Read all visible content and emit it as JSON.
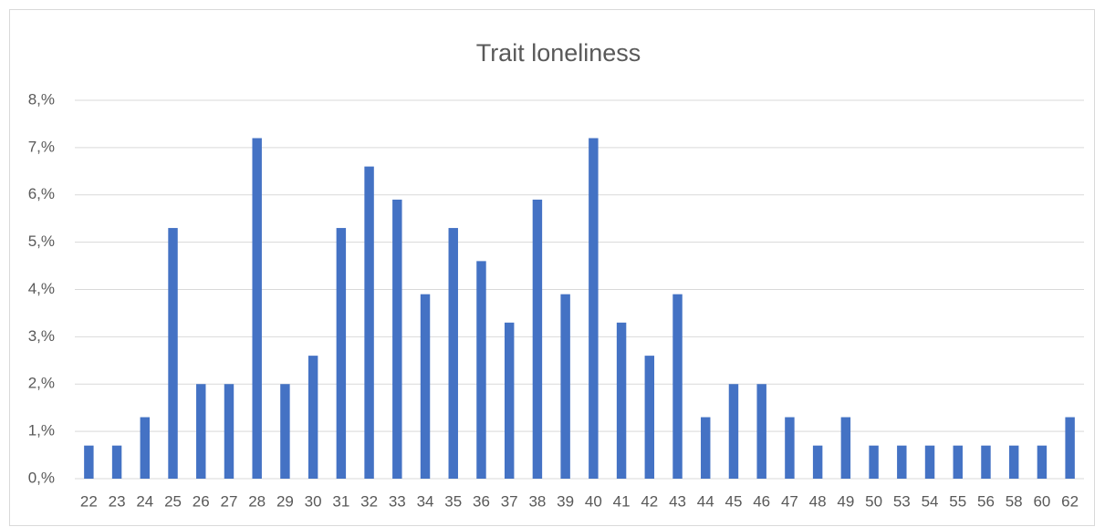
{
  "chart_data": {
    "type": "bar",
    "title": "Trait loneliness",
    "categories": [
      "22",
      "23",
      "24",
      "25",
      "26",
      "27",
      "28",
      "29",
      "30",
      "31",
      "32",
      "33",
      "34",
      "35",
      "36",
      "37",
      "38",
      "39",
      "40",
      "41",
      "42",
      "43",
      "44",
      "45",
      "46",
      "47",
      "48",
      "49",
      "50",
      "53",
      "54",
      "55",
      "56",
      "58",
      "60",
      "62"
    ],
    "values": [
      0.7,
      0.7,
      1.3,
      5.3,
      2.0,
      2.0,
      7.2,
      2.0,
      2.6,
      5.3,
      6.6,
      5.9,
      3.9,
      5.3,
      4.6,
      3.3,
      5.9,
      3.9,
      7.2,
      3.3,
      2.6,
      3.9,
      1.3,
      2.0,
      2.0,
      1.3,
      0.7,
      1.3,
      0.7,
      0.7,
      0.7,
      0.7,
      0.7,
      0.7,
      0.7,
      1.3
    ],
    "color": "#4472c4",
    "ylim": [
      0,
      8
    ],
    "yticks": [
      {
        "value": 0,
        "label": "0,%"
      },
      {
        "value": 1,
        "label": "1,%"
      },
      {
        "value": 2,
        "label": "2,%"
      },
      {
        "value": 3,
        "label": "3,%"
      },
      {
        "value": 4,
        "label": "4,%"
      },
      {
        "value": 5,
        "label": "5,%"
      },
      {
        "value": 6,
        "label": "6,%"
      },
      {
        "value": 7,
        "label": "7,%"
      },
      {
        "value": 8,
        "label": "8,%"
      }
    ],
    "grid": true
  }
}
